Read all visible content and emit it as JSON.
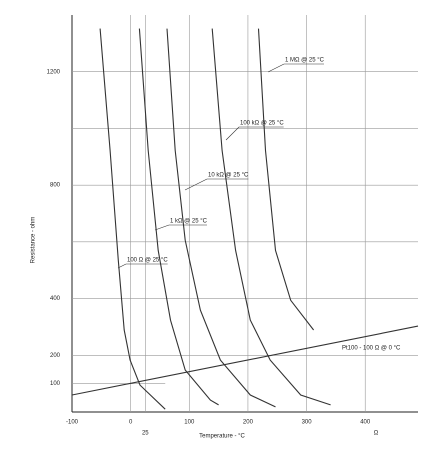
{
  "chart_data": {
    "type": "line",
    "y_label": "Resistance - ohm",
    "x_label": "Temperature - °C",
    "x_unit_note": "Ω",
    "xlim": [
      -100,
      490
    ],
    "ylim": [
      0,
      1400
    ],
    "xticks": [
      -100,
      0,
      25,
      100,
      200,
      300,
      400
    ],
    "yticks": [
      100,
      200,
      400,
      800,
      1200
    ],
    "ygrid": [
      100,
      200,
      400,
      600,
      800,
      1000,
      1200
    ],
    "grid": true,
    "color": "#333333",
    "series": [
      {
        "name": "100 Ω @ 25 °C",
        "x": [
          -52,
          -35,
          -21,
          -11,
          -1,
          16,
          59
        ],
        "values": [
          1352,
          922,
          535,
          289,
          183,
          95,
          10
        ]
      },
      {
        "name": "1 kΩ @ 25 °C",
        "x": [
          15,
          30,
          47,
          68,
          93,
          136,
          150
        ],
        "values": [
          1352,
          922,
          570,
          324,
          148,
          42,
          25
        ]
      },
      {
        "name": "10 kΩ @ 25 °C",
        "x": [
          62,
          76,
          93,
          119,
          153,
          204,
          247
        ],
        "values": [
          1352,
          922,
          606,
          359,
          183,
          60,
          18
        ]
      },
      {
        "name": "100 kΩ @ 25 °C",
        "x": [
          139,
          156,
          179,
          204,
          238,
          290,
          341
        ],
        "values": [
          1352,
          922,
          570,
          324,
          183,
          60,
          25
        ]
      },
      {
        "name": "1 MΩ @ 25 °C",
        "x": [
          218,
          230,
          247,
          273,
          312
        ],
        "values": [
          1352,
          922,
          570,
          394,
          289
        ]
      },
      {
        "name": "Pt100 - 100 Ω @ 0 °C",
        "x": [
          -100,
          490
        ],
        "values": [
          60,
          303
        ]
      }
    ]
  }
}
